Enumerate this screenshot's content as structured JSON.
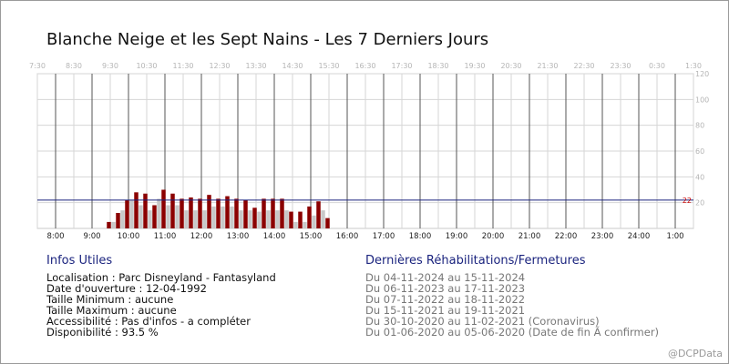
{
  "title": "Blanche Neige et les Sept Nains - Les 7 Derniers Jours",
  "chart_data": {
    "type": "bar",
    "top_ticks": [
      "7:30",
      "8:30",
      "9:30",
      "10:30",
      "11:30",
      "12:30",
      "13:30",
      "14:30",
      "15:30",
      "16:30",
      "17:30",
      "18:30",
      "19:30",
      "20:30",
      "21:30",
      "22:30",
      "23:30",
      "0:30",
      "1:30"
    ],
    "bottom_ticks": [
      "8:00",
      "9:00",
      "10:00",
      "11:00",
      "12:00",
      "13:00",
      "14:00",
      "15:00",
      "16:00",
      "17:00",
      "18:00",
      "19:00",
      "20:00",
      "21:00",
      "22:00",
      "23:00",
      "24:00",
      "1:00"
    ],
    "y_ticks": [
      20,
      40,
      60,
      80,
      100,
      120
    ],
    "ylim": [
      0,
      120
    ],
    "x_range_hours": [
      7.5,
      25.5
    ],
    "reference_value": 22,
    "reference_label": "22",
    "series": [
      {
        "color": "#8b0000",
        "x": [
          9.5,
          9.75,
          10.0,
          10.25,
          10.5,
          10.75,
          11.0,
          11.25,
          11.5,
          11.75,
          12.0,
          12.25,
          12.5,
          12.75,
          13.0,
          13.25,
          13.5,
          13.75,
          14.0,
          14.25,
          14.5,
          14.75,
          15.0,
          15.25,
          15.5,
          15.75,
          16.0,
          16.25,
          16.5,
          16.75,
          17.0
        ],
        "values": [
          5,
          12,
          22,
          28,
          27,
          18,
          30,
          27,
          23,
          24,
          23,
          26,
          23,
          25,
          23,
          22,
          16,
          23,
          23,
          23,
          13,
          13,
          17,
          21,
          8,
          0,
          0,
          0,
          0,
          0,
          0
        ]
      },
      {
        "color": "#c8c8c8",
        "x": [
          9.5,
          9.75,
          10.0,
          10.25,
          10.5,
          10.75,
          11.0,
          11.25,
          11.5,
          11.75,
          12.0,
          12.25,
          12.5,
          12.75,
          13.0,
          13.25,
          13.5,
          13.75,
          14.0,
          14.25,
          14.5,
          14.75,
          15.0,
          15.25,
          15.5,
          15.75,
          16.0,
          16.25,
          16.5,
          16.75,
          17.0
        ],
        "values": [
          5,
          14,
          22,
          18,
          14,
          23,
          18,
          18,
          14,
          14,
          14,
          17,
          17,
          17,
          14,
          14,
          13,
          14,
          14,
          14,
          5,
          5,
          10,
          14,
          0,
          0,
          0,
          0,
          0,
          0,
          0
        ]
      }
    ]
  },
  "infos": {
    "title": "Infos Utiles",
    "lines": [
      "Localisation : Parc Disneyland - Fantasyland",
      "Date d'ouverture : 12-04-1992",
      "Taille Minimum : aucune",
      "Taille Maximum : aucune",
      "Accessibilité : Pas d'infos - a compléter",
      "Disponibilité : 93.5 %"
    ]
  },
  "rehab": {
    "title": "Dernières Réhabilitations/Fermetures",
    "lines": [
      "Du 04-11-2024 au 15-11-2024",
      "Du 06-11-2023 au 17-11-2023",
      "Du 07-11-2022 au 18-11-2022",
      "Du 15-11-2021 au 19-11-2021",
      "Du 30-10-2020 au 11-02-2021 (Coronavirus)",
      "Du 01-06-2020 au 05-06-2020 (Date de fin Ã  confirmer)"
    ]
  },
  "credit": "@DCPData",
  "colors": {
    "primary_bar": "#8b0000",
    "secondary_bar": "#c8c8c8",
    "reference_line": "#1a237e",
    "reference_label": "#cc0000",
    "section_title": "#1a237e"
  }
}
